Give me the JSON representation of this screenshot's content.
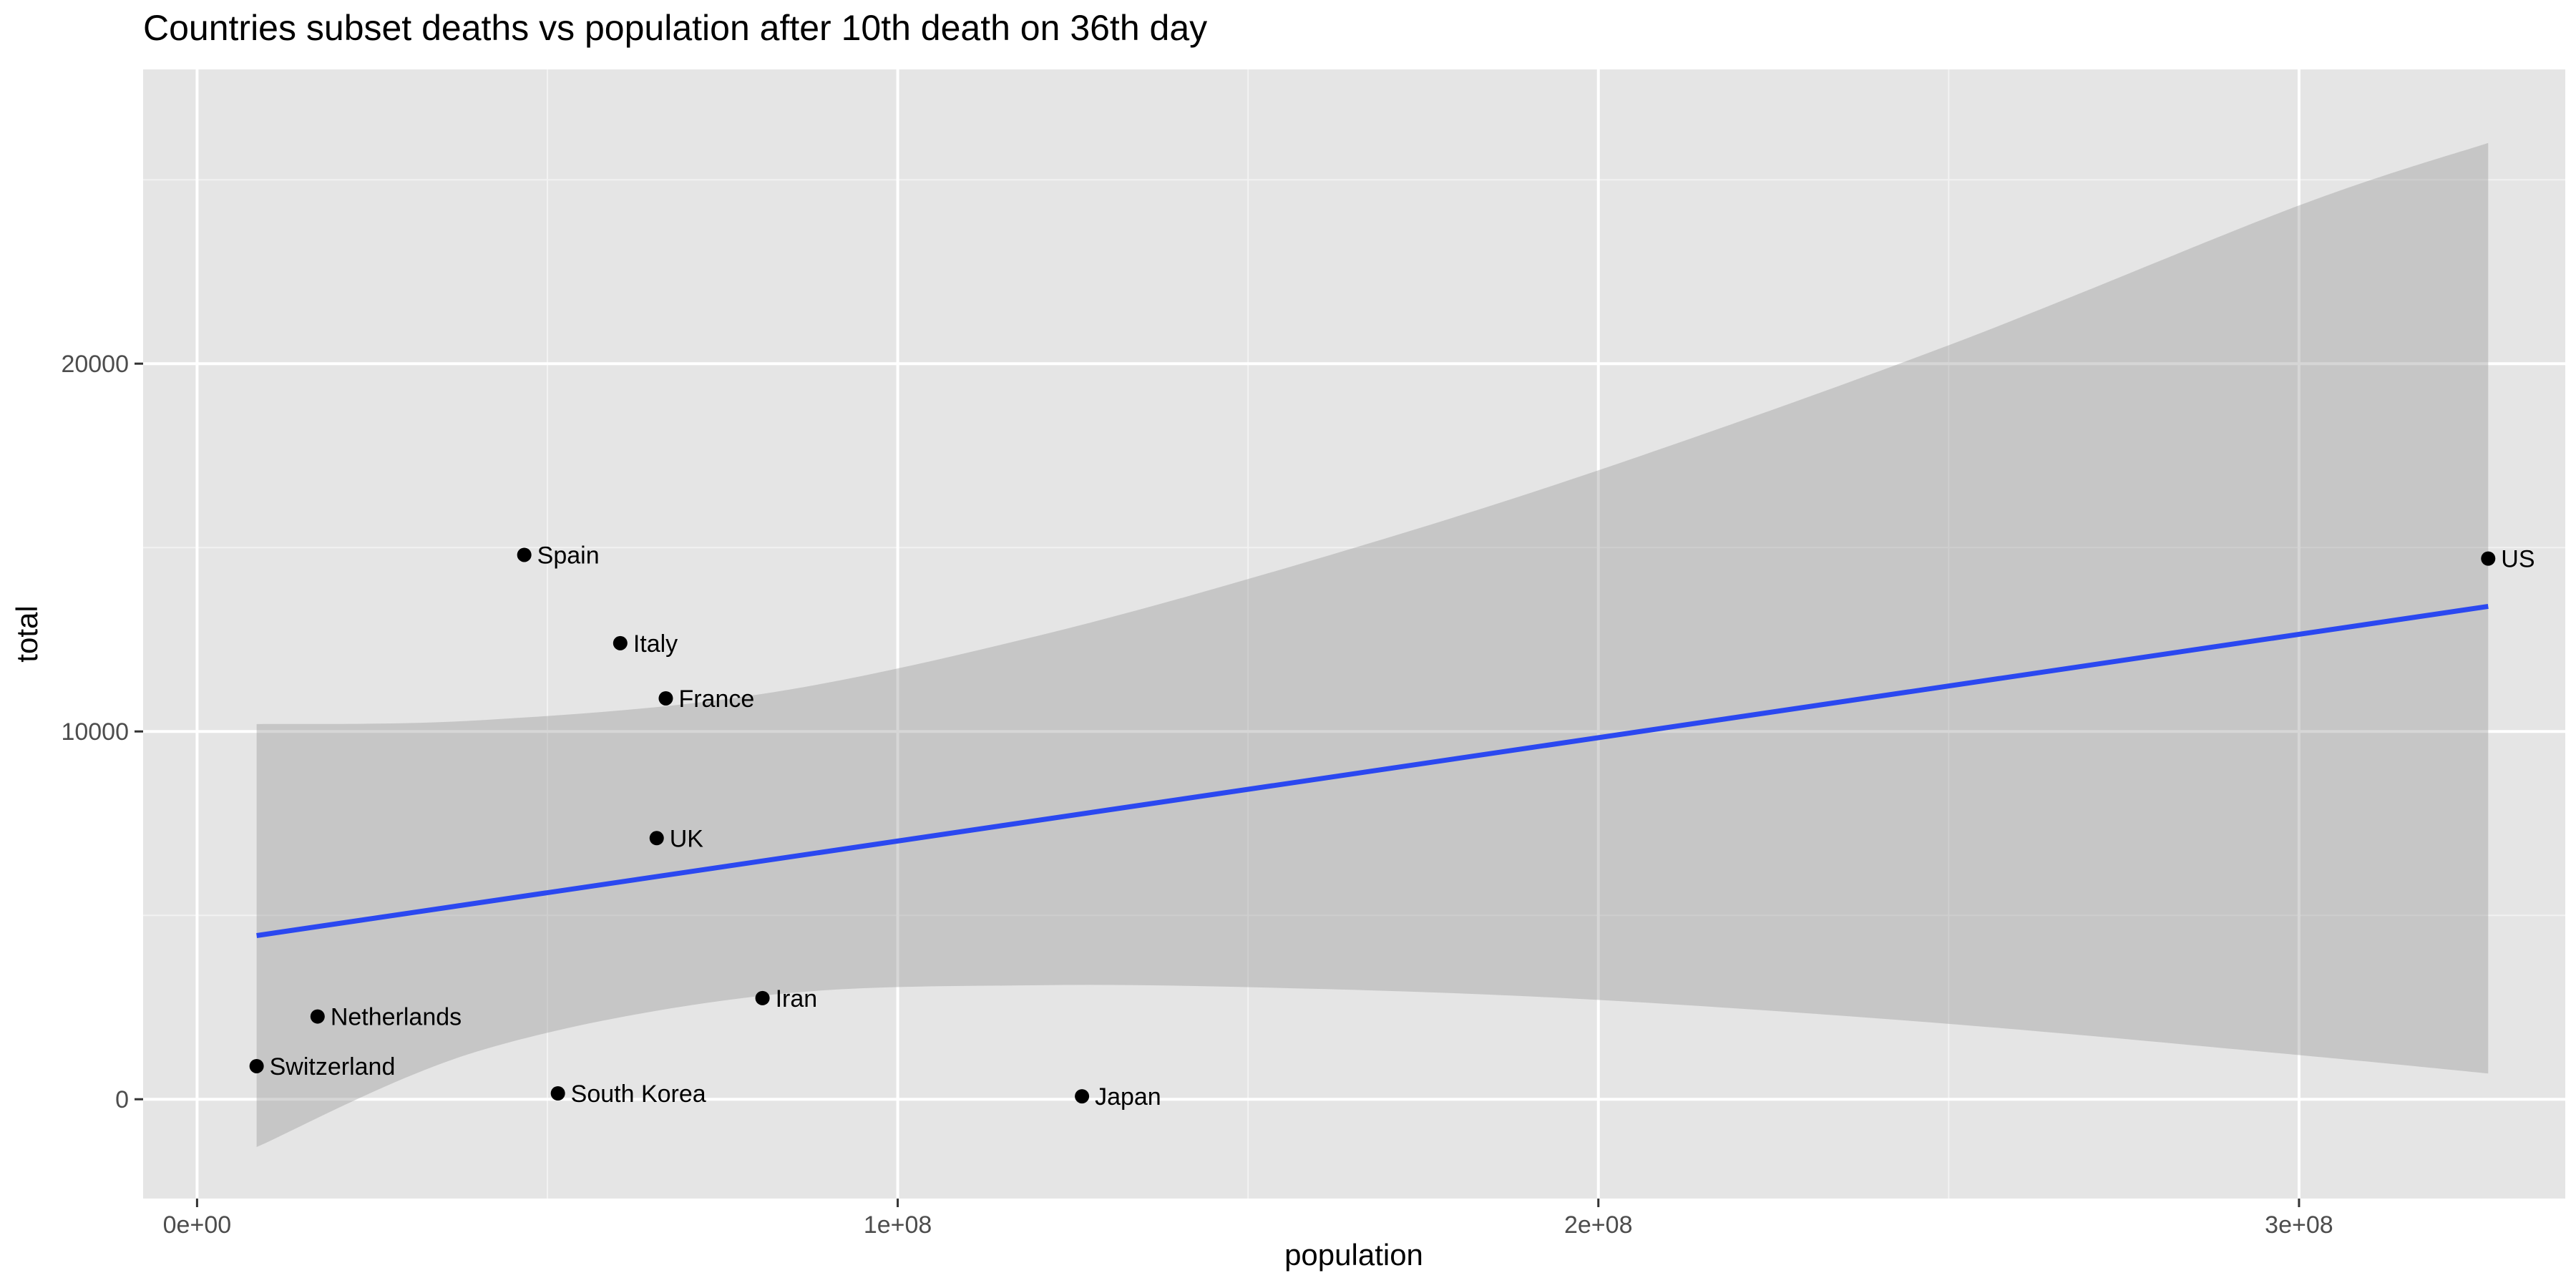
{
  "chart_data": {
    "type": "scatter",
    "title": "Countries subset deaths vs population after 10th death on 36th day",
    "xlabel": "population",
    "ylabel": "total",
    "xlim": [
      -7700000,
      338000000
    ],
    "ylim": [
      -2700,
      28000
    ],
    "x_ticks": [
      {
        "value": 0,
        "label": "0e+00"
      },
      {
        "value": 100000000,
        "label": "1e+08"
      },
      {
        "value": 200000000,
        "label": "2e+08"
      },
      {
        "value": 300000000,
        "label": "3e+08"
      }
    ],
    "y_ticks": [
      {
        "value": 0,
        "label": "0"
      },
      {
        "value": 10000,
        "label": "10000"
      },
      {
        "value": 20000,
        "label": "20000"
      }
    ],
    "x_minor": [
      50000000,
      150000000,
      250000000
    ],
    "y_minor": [
      5000,
      15000,
      25000
    ],
    "points": [
      {
        "label": "Spain",
        "x": 46700000,
        "y": 14800
      },
      {
        "label": "Italy",
        "x": 60400000,
        "y": 12400
      },
      {
        "label": "France",
        "x": 66900000,
        "y": 10900
      },
      {
        "label": "UK",
        "x": 65600000,
        "y": 7100
      },
      {
        "label": "Iran",
        "x": 80700000,
        "y": 2750
      },
      {
        "label": "Netherlands",
        "x": 17200000,
        "y": 2250
      },
      {
        "label": "Switzerland",
        "x": 8500000,
        "y": 900
      },
      {
        "label": "South Korea",
        "x": 51500000,
        "y": 160
      },
      {
        "label": "Japan",
        "x": 126300000,
        "y": 80
      },
      {
        "label": "US",
        "x": 327000000,
        "y": 14700
      }
    ],
    "regression_line": {
      "x": [
        8500000,
        327000000
      ],
      "y": [
        4450,
        13400
      ]
    },
    "confidence_band": {
      "x": [
        8500000,
        40000000,
        80000000,
        120000000,
        160000000,
        200000000,
        250000000,
        300000000,
        327000000
      ],
      "upper": [
        10200,
        10300,
        11000,
        12600,
        14700,
        17100,
        20500,
        24300,
        26000
      ],
      "lower": [
        -1300,
        1300,
        2800,
        3100,
        3000,
        2700,
        2050,
        1200,
        700
      ]
    },
    "colors": {
      "panel": "#e5e5e5",
      "grid_major": "#ffffff",
      "grid_minor": "#f2f2f2",
      "line": "#2b48f0",
      "band": "#999999",
      "point": "#000000"
    }
  }
}
